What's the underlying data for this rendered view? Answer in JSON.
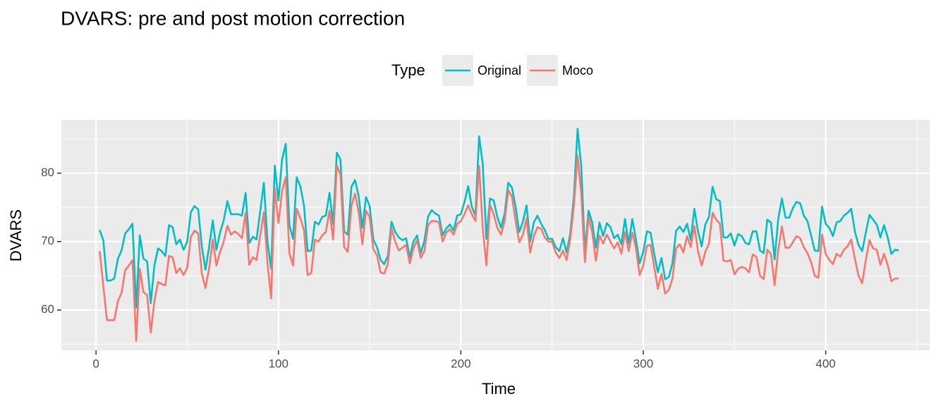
{
  "chart_data": {
    "type": "line",
    "title": "DVARS: pre and post motion correction",
    "x_label": "Time",
    "y_label": "DVARS",
    "legend_title": "Type",
    "legend_position": "top",
    "xlim": [
      -19,
      457
    ],
    "ylim": [
      54.1,
      87.8
    ],
    "xticks": [
      0,
      100,
      200,
      300,
      400
    ],
    "yticks": [
      60,
      70,
      80
    ],
    "grid": true,
    "x": [
      2,
      4,
      6,
      8,
      10,
      12,
      14,
      16,
      18,
      20,
      22,
      24,
      26,
      28,
      30,
      32,
      34,
      36,
      38,
      40,
      42,
      44,
      46,
      48,
      50,
      52,
      54,
      56,
      58,
      60,
      62,
      64,
      66,
      68,
      70,
      72,
      74,
      76,
      78,
      80,
      82,
      84,
      86,
      88,
      90,
      92,
      94,
      96,
      98,
      100,
      102,
      104,
      106,
      108,
      110,
      112,
      114,
      116,
      118,
      120,
      122,
      124,
      126,
      128,
      130,
      132,
      134,
      136,
      138,
      140,
      142,
      144,
      146,
      148,
      150,
      152,
      154,
      156,
      158,
      160,
      162,
      164,
      166,
      168,
      170,
      172,
      174,
      176,
      178,
      180,
      182,
      184,
      186,
      188,
      190,
      192,
      194,
      196,
      198,
      200,
      202,
      204,
      206,
      208,
      210,
      212,
      214,
      216,
      218,
      220,
      222,
      224,
      226,
      228,
      230,
      232,
      234,
      236,
      238,
      240,
      242,
      244,
      246,
      248,
      250,
      252,
      254,
      256,
      258,
      260,
      262,
      264,
      266,
      268,
      270,
      272,
      274,
      276,
      278,
      280,
      282,
      284,
      286,
      288,
      290,
      292,
      294,
      296,
      298,
      300,
      302,
      304,
      306,
      308,
      310,
      312,
      314,
      316,
      318,
      320,
      322,
      324,
      326,
      328,
      330,
      332,
      334,
      336,
      338,
      340,
      342,
      344,
      346,
      348,
      350,
      352,
      354,
      356,
      358,
      360,
      362,
      364,
      366,
      368,
      370,
      372,
      374,
      376,
      378,
      380,
      382,
      384,
      386,
      388,
      390,
      392,
      394,
      396,
      398,
      400,
      402,
      404,
      406,
      408,
      410,
      412,
      414,
      416,
      418,
      420,
      422,
      424,
      426,
      428,
      430,
      432,
      434,
      436,
      438,
      440
    ],
    "series": [
      {
        "name": "Original",
        "color": "#00BFC4",
        "values": [
          71.7,
          70.2,
          64.3,
          64.3,
          64.6,
          67.5,
          68.7,
          71.2,
          71.8,
          72.6,
          60.3,
          70.9,
          67.5,
          67.1,
          61.0,
          66.5,
          69.0,
          68.6,
          67.9,
          72.4,
          72.1,
          69.6,
          70.3,
          68.8,
          70.0,
          74.3,
          75.2,
          74.7,
          69.3,
          65.9,
          69.2,
          73.1,
          68.8,
          71.3,
          73.1,
          75.9,
          74.0,
          74.0,
          74.0,
          73.8,
          77.1,
          69.8,
          70.7,
          70.3,
          74.4,
          78.6,
          70.0,
          66.0,
          81.1,
          76.0,
          82.0,
          84.3,
          72.4,
          70.4,
          79.4,
          78.1,
          75.3,
          68.6,
          68.7,
          72.9,
          72.5,
          73.6,
          73.8,
          77.1,
          72.5,
          83.0,
          82.0,
          71.5,
          71.0,
          78.0,
          79.0,
          76.6,
          72.0,
          76.5,
          75.2,
          70.3,
          69.2,
          67.3,
          66.7,
          67.9,
          72.9,
          71.4,
          70.6,
          70.2,
          70.5,
          67.7,
          70.0,
          70.9,
          68.3,
          70.1,
          73.6,
          74.6,
          74.1,
          73.8,
          70.9,
          71.9,
          72.5,
          71.6,
          73.8,
          74.0,
          75.8,
          78.1,
          75.1,
          73.8,
          85.4,
          81.4,
          70.4,
          76.3,
          76.0,
          73.6,
          72.0,
          74.1,
          78.6,
          77.9,
          75.1,
          71.4,
          72.9,
          75.3,
          70.0,
          72.8,
          73.8,
          72.6,
          71.7,
          70.4,
          70.4,
          69.2,
          68.6,
          70.5,
          68.4,
          71.2,
          76.7,
          86.5,
          81.0,
          68.5,
          74.5,
          72.8,
          69.1,
          72.8,
          70.8,
          72.7,
          72.1,
          70.5,
          71.0,
          69.6,
          73.3,
          69.7,
          73.3,
          70.3,
          66.8,
          68.5,
          71.5,
          71.3,
          68.2,
          65.5,
          67.6,
          64.5,
          64.8,
          66.8,
          71.6,
          72.2,
          71.4,
          72.6,
          70.2,
          74.8,
          71.5,
          69.3,
          72.5,
          73.6,
          78.0,
          76.2,
          75.9,
          70.6,
          70.6,
          71.2,
          69.4,
          71.1,
          70.8,
          69.8,
          69.6,
          71.5,
          71.5,
          68.7,
          68.3,
          73.2,
          72.8,
          67.4,
          73.3,
          76.3,
          73.5,
          73.5,
          74.9,
          75.8,
          75.6,
          73.8,
          73.0,
          70.9,
          68.7,
          68.6,
          75.1,
          72.6,
          72.0,
          70.8,
          72.8,
          73.0,
          73.8,
          74.2,
          74.8,
          71.5,
          69.5,
          68.6,
          71.3,
          73.9,
          73.2,
          72.5,
          70.6,
          72.4,
          70.6,
          68.2,
          68.8,
          68.7
        ]
      },
      {
        "name": "Moco",
        "color": "#F8766D",
        "values": [
          68.6,
          63.5,
          58.5,
          58.5,
          58.5,
          61.3,
          62.5,
          65.8,
          66.5,
          67.3,
          55.5,
          66.0,
          62.6,
          62.2,
          56.7,
          61.3,
          64.1,
          63.8,
          63.6,
          67.9,
          67.7,
          65.4,
          66.1,
          65.1,
          66.2,
          70.7,
          71.6,
          71.2,
          65.3,
          63.2,
          66.1,
          70.3,
          66.5,
          68.5,
          70.0,
          72.3,
          71.0,
          71.5,
          71.1,
          70.5,
          74.2,
          66.6,
          67.7,
          67.3,
          70.9,
          74.3,
          66.8,
          61.7,
          77.8,
          72.7,
          77.4,
          79.4,
          68.3,
          66.5,
          74.8,
          73.4,
          71.7,
          65.1,
          65.4,
          70.3,
          70.0,
          70.9,
          71.4,
          74.5,
          70.3,
          81.1,
          79.8,
          69.2,
          68.5,
          75.2,
          77.0,
          74.3,
          69.6,
          74.5,
          73.6,
          68.9,
          68.0,
          65.5,
          65.3,
          66.8,
          71.9,
          70.0,
          68.7,
          69.1,
          69.5,
          66.8,
          69.0,
          70.2,
          67.6,
          68.6,
          72.4,
          73.0,
          73.0,
          72.8,
          70.0,
          71.3,
          71.8,
          71.0,
          72.6,
          73.0,
          74.0,
          75.3,
          74.0,
          73.0,
          81.1,
          72.0,
          66.5,
          75.4,
          74.0,
          72.0,
          71.0,
          73.0,
          77.5,
          76.6,
          73.0,
          69.9,
          71.0,
          73.4,
          68.4,
          70.8,
          72.1,
          71.9,
          70.6,
          70.0,
          70.0,
          68.4,
          67.6,
          68.7,
          67.3,
          70.4,
          75.4,
          82.6,
          77.0,
          67.0,
          73.6,
          71.4,
          67.2,
          70.9,
          69.7,
          71.0,
          70.0,
          69.0,
          69.9,
          68.2,
          71.4,
          68.6,
          71.3,
          69.0,
          65.1,
          66.5,
          69.4,
          69.5,
          66.3,
          63.1,
          65.3,
          62.4,
          62.9,
          64.6,
          69.0,
          69.6,
          68.4,
          70.8,
          69.2,
          72.3,
          68.6,
          66.5,
          68.5,
          69.7,
          74.2,
          73.2,
          72.6,
          67.2,
          67.1,
          67.3,
          65.2,
          66.0,
          66.3,
          66.1,
          65.5,
          68.1,
          67.8,
          65.0,
          64.5,
          68.8,
          68.2,
          63.6,
          68.8,
          72.2,
          69.1,
          69.1,
          69.9,
          70.8,
          70.5,
          69.2,
          68.3,
          67.0,
          65.0,
          64.7,
          71.0,
          68.2,
          67.3,
          66.7,
          68.2,
          67.8,
          68.8,
          69.3,
          70.3,
          67.5,
          65.0,
          63.9,
          67.3,
          70.2,
          69.0,
          68.8,
          66.6,
          68.2,
          66.6,
          64.2,
          64.6,
          64.6
        ]
      }
    ]
  }
}
